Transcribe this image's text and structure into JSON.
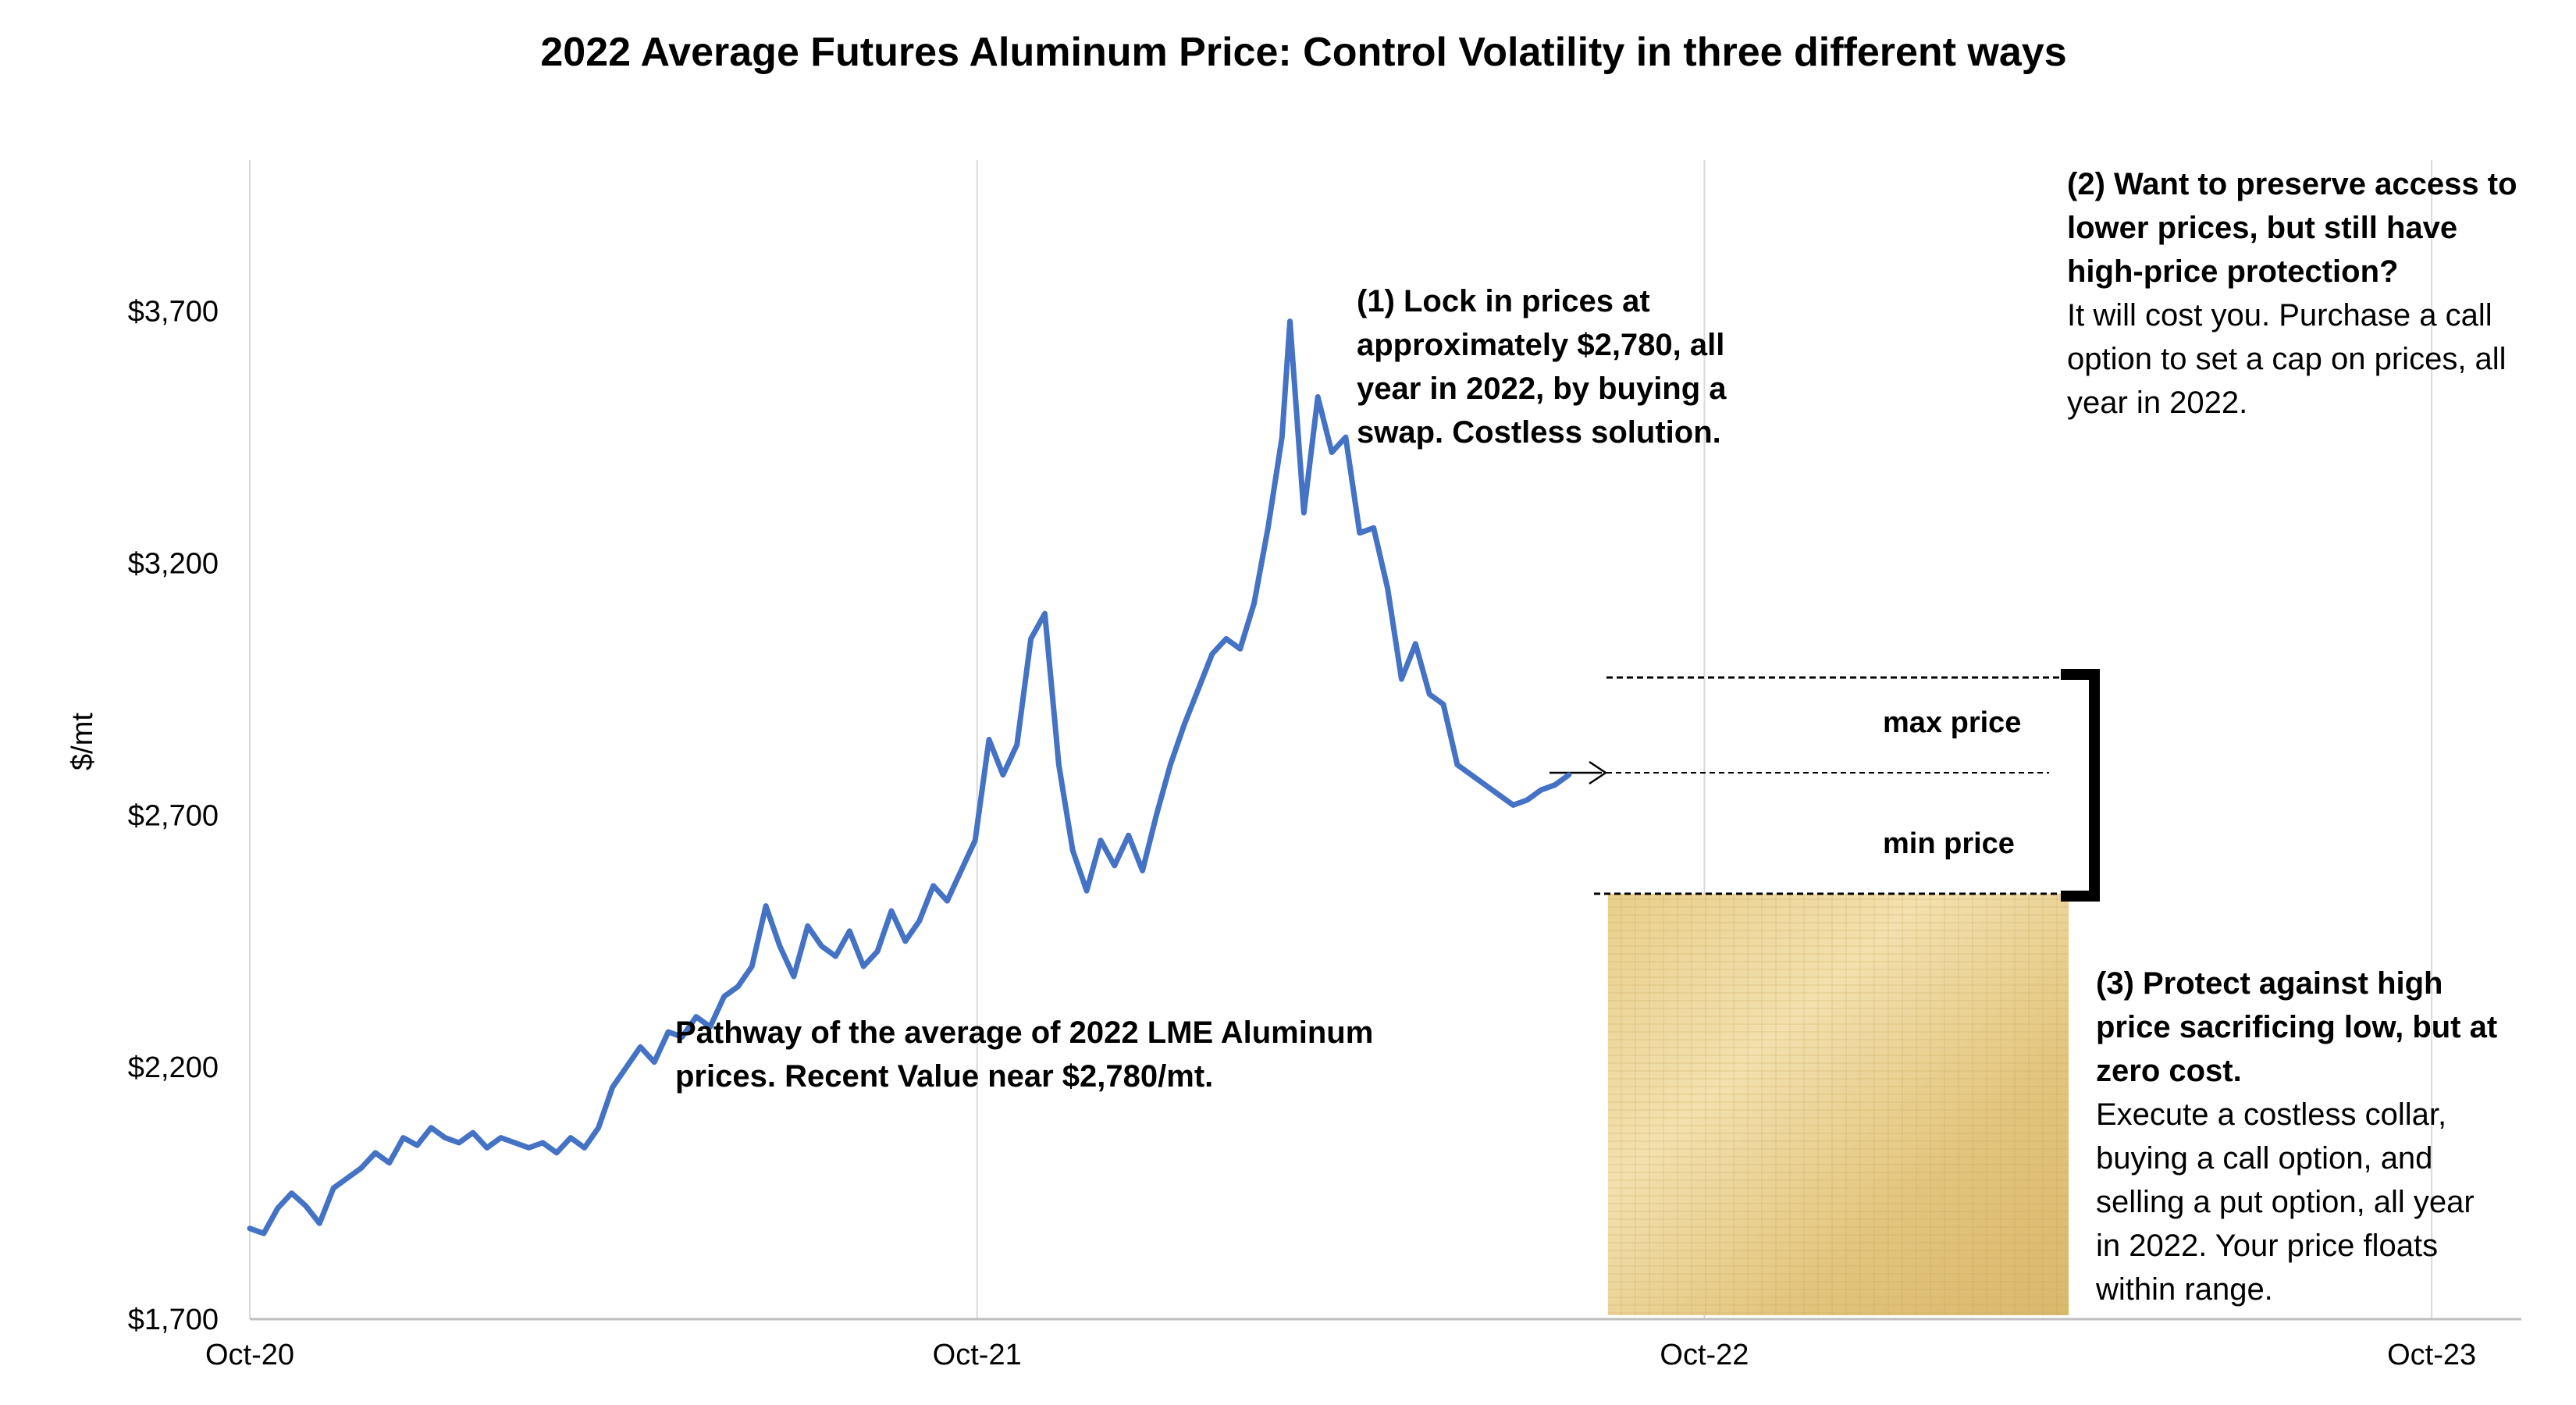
{
  "chart_data": {
    "type": "line",
    "title": "2022 Average Futures Aluminum Price: Control Volatility in three different ways",
    "ylabel": "$/mt",
    "xlabel": "",
    "x_ticks": [
      "Oct-20",
      "Oct-21",
      "Oct-22",
      "Oct-23"
    ],
    "y_ticks": [
      "$1,700",
      "$2,200",
      "$2,700",
      "$3,200",
      "$3,700"
    ],
    "ylim": [
      1700,
      4000
    ],
    "xlim": [
      "2020-10-01",
      "2023-11-15"
    ],
    "grid": "vertical",
    "series": [
      {
        "name": "",
        "color": "#4472C4",
        "points": [
          [
            "2020-10-01",
            1880
          ],
          [
            "2020-10-08",
            1870
          ],
          [
            "2020-10-15",
            1920
          ],
          [
            "2020-10-22",
            1950
          ],
          [
            "2020-10-29",
            1925
          ],
          [
            "2020-11-05",
            1890
          ],
          [
            "2020-11-12",
            1960
          ],
          [
            "2020-11-19",
            1980
          ],
          [
            "2020-11-26",
            2000
          ],
          [
            "2020-12-03",
            2030
          ],
          [
            "2020-12-10",
            2010
          ],
          [
            "2020-12-17",
            2060
          ],
          [
            "2020-12-24",
            2045
          ],
          [
            "2020-12-31",
            2080
          ],
          [
            "2021-01-07",
            2060
          ],
          [
            "2021-01-14",
            2050
          ],
          [
            "2021-01-21",
            2070
          ],
          [
            "2021-01-28",
            2040
          ],
          [
            "2021-02-04",
            2060
          ],
          [
            "2021-02-11",
            2050
          ],
          [
            "2021-02-18",
            2040
          ],
          [
            "2021-02-25",
            2050
          ],
          [
            "2021-03-04",
            2030
          ],
          [
            "2021-03-11",
            2060
          ],
          [
            "2021-03-18",
            2040
          ],
          [
            "2021-03-25",
            2080
          ],
          [
            "2021-04-01",
            2160
          ],
          [
            "2021-04-08",
            2200
          ],
          [
            "2021-04-15",
            2240
          ],
          [
            "2021-04-22",
            2210
          ],
          [
            "2021-04-29",
            2270
          ],
          [
            "2021-05-06",
            2260
          ],
          [
            "2021-05-13",
            2300
          ],
          [
            "2021-05-20",
            2280
          ],
          [
            "2021-05-27",
            2340
          ],
          [
            "2021-06-03",
            2360
          ],
          [
            "2021-06-10",
            2400
          ],
          [
            "2021-06-17",
            2520
          ],
          [
            "2021-06-24",
            2440
          ],
          [
            "2021-07-01",
            2380
          ],
          [
            "2021-07-08",
            2480
          ],
          [
            "2021-07-15",
            2440
          ],
          [
            "2021-07-22",
            2420
          ],
          [
            "2021-07-29",
            2470
          ],
          [
            "2021-08-05",
            2400
          ],
          [
            "2021-08-12",
            2430
          ],
          [
            "2021-08-19",
            2510
          ],
          [
            "2021-08-26",
            2450
          ],
          [
            "2021-09-02",
            2490
          ],
          [
            "2021-09-09",
            2560
          ],
          [
            "2021-09-16",
            2530
          ],
          [
            "2021-09-23",
            2590
          ],
          [
            "2021-09-30",
            2650
          ],
          [
            "2021-10-07",
            2850
          ],
          [
            "2021-10-14",
            2780
          ],
          [
            "2021-10-21",
            2840
          ],
          [
            "2021-10-28",
            3050
          ],
          [
            "2021-11-04",
            3100
          ],
          [
            "2021-11-11",
            2800
          ],
          [
            "2021-11-18",
            2630
          ],
          [
            "2021-11-25",
            2550
          ],
          [
            "2021-12-02",
            2650
          ],
          [
            "2021-12-09",
            2600
          ],
          [
            "2021-12-16",
            2660
          ],
          [
            "2021-12-23",
            2590
          ],
          [
            "2021-12-30",
            2700
          ],
          [
            "2022-01-06",
            2800
          ],
          [
            "2022-01-13",
            2880
          ],
          [
            "2022-01-20",
            2950
          ],
          [
            "2022-01-27",
            3020
          ],
          [
            "2022-02-03",
            3050
          ],
          [
            "2022-02-10",
            3030
          ],
          [
            "2022-02-17",
            3120
          ],
          [
            "2022-02-24",
            3270
          ],
          [
            "2022-03-03",
            3450
          ],
          [
            "2022-03-07",
            3680
          ],
          [
            "2022-03-14",
            3300
          ],
          [
            "2022-03-21",
            3530
          ],
          [
            "2022-03-28",
            3420
          ],
          [
            "2022-04-04",
            3450
          ],
          [
            "2022-04-11",
            3260
          ],
          [
            "2022-04-18",
            3270
          ],
          [
            "2022-04-25",
            3150
          ],
          [
            "2022-05-02",
            2970
          ],
          [
            "2022-05-09",
            3040
          ],
          [
            "2022-05-16",
            2940
          ],
          [
            "2022-05-23",
            2920
          ],
          [
            "2022-05-30",
            2800
          ],
          [
            "2022-06-06",
            2780
          ],
          [
            "2022-06-13",
            2760
          ],
          [
            "2022-06-20",
            2740
          ],
          [
            "2022-06-27",
            2720
          ],
          [
            "2022-07-04",
            2730
          ],
          [
            "2022-07-11",
            2750
          ],
          [
            "2022-07-18",
            2760
          ],
          [
            "2022-07-25",
            2780
          ]
        ]
      }
    ],
    "reference_lines": [
      {
        "label": "max price",
        "value": 2975
      },
      {
        "label": "",
        "value": 2780
      },
      {
        "label": "min price",
        "value": 2530
      }
    ]
  },
  "annotations": {
    "lock": "(1) Lock in prices at approximately $2,780, all year in 2022, by buying a swap. Costless solution.",
    "preserve_bold": "(2) Want to preserve access to lower prices, but still have high-price protection?",
    "preserve_plain": "It will cost you. Purchase a call option to set a cap on prices, all year in 2022.",
    "pathway": "Pathway of the average of 2022 LME Aluminum prices.  Recent Value near $2,780/mt.",
    "collar_bold": "(3) Protect against high price sacrificing low, but at zero cost.",
    "collar_plain": "Execute a costless collar, buying a call option, and selling a put option, all year in 2022.  Your price floats within range.",
    "max_price": "max price",
    "min_price": "min price"
  },
  "colors": {
    "line": "#4472C4",
    "grid": "#D9D9D9",
    "axis": "#BFBFBF",
    "parchment_light": "#F1DDA5",
    "parchment_dark": "#D8B667"
  }
}
